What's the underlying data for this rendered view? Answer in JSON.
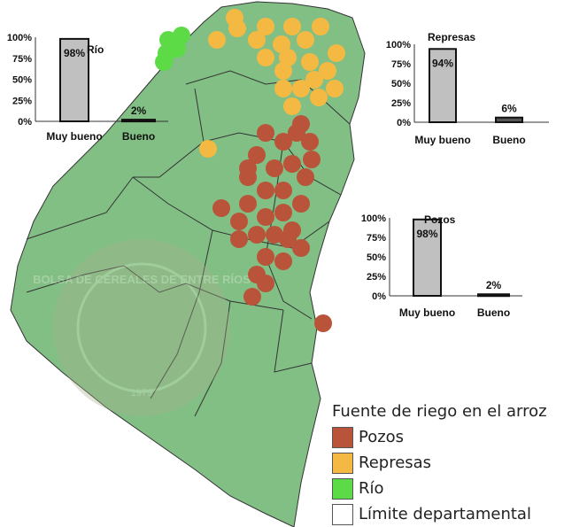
{
  "legend": {
    "title": "Fuente de riego en el arroz",
    "items": [
      {
        "label": "Pozos",
        "color": "#b9543a"
      },
      {
        "label": "Represas",
        "color": "#f4b942"
      },
      {
        "label": "Río",
        "color": "#5cdb47"
      },
      {
        "label": "Límite departamental",
        "color": "#ffffff"
      }
    ]
  },
  "watermark": {
    "text": "BOLSA DE CEREALES DE ENTRE RÍOS",
    "year": "1979"
  },
  "chart_data": [
    {
      "type": "bar",
      "title": "Río",
      "categories": [
        "Muy bueno",
        "Bueno"
      ],
      "values": [
        98,
        2
      ],
      "value_labels": [
        "98%",
        "2%"
      ],
      "yticks": [
        "100%",
        "75%",
        "50%",
        "25%",
        "0%"
      ],
      "ylim": [
        0,
        100
      ]
    },
    {
      "type": "bar",
      "title": "Represas",
      "categories": [
        "Muy bueno",
        "Bueno"
      ],
      "values": [
        94,
        6
      ],
      "value_labels": [
        "94%",
        "6%"
      ],
      "yticks": [
        "100%",
        "75%",
        "50%",
        "25%",
        "0%"
      ],
      "ylim": [
        0,
        100
      ]
    },
    {
      "type": "bar",
      "title": "Pozos",
      "categories": [
        "Muy bueno",
        "Bueno"
      ],
      "values": [
        98,
        2
      ],
      "value_labels": [
        "98%",
        "2%"
      ],
      "yticks": [
        "100%",
        "75%",
        "50%",
        "25%",
        "0%"
      ],
      "ylim": [
        0,
        100
      ]
    }
  ]
}
